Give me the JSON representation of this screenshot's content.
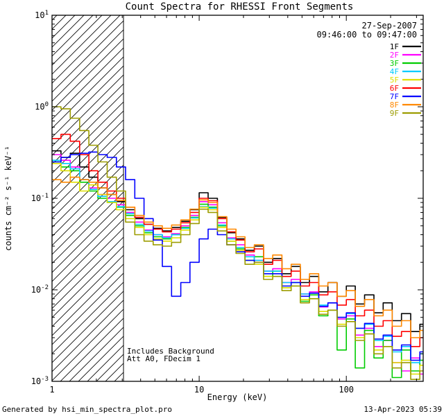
{
  "title": "Count Spectra for RHESSI Front Segments",
  "header": {
    "date": "27-Sep-2007",
    "time_range": "09:46:00 to 09:47:00"
  },
  "annotations": {
    "line1": "Includes Background",
    "line2": "Att A0, FDecim 1"
  },
  "footer": {
    "left": "Generated by hsi_min_spectra_plot.pro",
    "right": "13-Apr-2023 05:39"
  },
  "chart_data": {
    "type": "line",
    "title": "Count Spectra for RHESSI Front Segments",
    "xlabel": "Energy (keV)",
    "ylabel": "counts cm⁻² s⁻¹ keV⁻¹",
    "xscale": "log",
    "yscale": "log",
    "xlim": [
      1,
      333
    ],
    "ylim": [
      0.001,
      10
    ],
    "x_tick_values": [
      1,
      10,
      100
    ],
    "x_tick_labels": [
      "1",
      "10",
      "100"
    ],
    "y_tick_exponents": [
      1,
      0,
      -1,
      -2,
      -3
    ],
    "grid": false,
    "legend_position": "top-right",
    "step_mode": true,
    "hatched_region": {
      "xmin": 1,
      "xmax": 3.06
    },
    "energies_keV": [
      1.0,
      1.15,
      1.33,
      1.54,
      1.78,
      2.05,
      2.37,
      2.74,
      3.16,
      3.65,
      4.22,
      4.87,
      5.62,
      6.49,
      7.5,
      8.66,
      10.0,
      11.5,
      13.3,
      15.4,
      17.8,
      20.5,
      23.7,
      27.4,
      31.6,
      36.5,
      42.2,
      48.7,
      56.2,
      64.9,
      75.0,
      86.6,
      100,
      115,
      133,
      154,
      178,
      205,
      237,
      274,
      316
    ],
    "series": [
      {
        "name": "1F",
        "color": "#000000",
        "values": [
          0.33,
          0.28,
          0.31,
          0.22,
          0.17,
          0.13,
          0.11,
          0.092,
          0.075,
          0.06,
          0.052,
          0.047,
          0.044,
          0.048,
          0.056,
          0.075,
          0.115,
          0.1,
          0.062,
          0.042,
          0.036,
          0.027,
          0.03,
          0.02,
          0.022,
          0.015,
          0.018,
          0.012,
          0.014,
          0.0095,
          0.012,
          0.0085,
          0.011,
          0.007,
          0.0088,
          0.0056,
          0.0072,
          0.0046,
          0.0055,
          0.0035,
          0.0042
        ]
      },
      {
        "name": "2F",
        "color": "#FF00FF",
        "values": [
          0.3,
          0.26,
          0.22,
          0.16,
          0.13,
          0.11,
          0.1,
          0.085,
          0.07,
          0.055,
          0.045,
          0.04,
          0.038,
          0.041,
          0.05,
          0.065,
          0.092,
          0.085,
          0.054,
          0.037,
          0.031,
          0.024,
          0.021,
          0.016,
          0.017,
          0.012,
          0.013,
          0.009,
          0.0095,
          0.0065,
          0.0072,
          0.0048,
          0.0052,
          0.0032,
          0.0038,
          0.0024,
          0.0028,
          0.0016,
          0.0013,
          0.0018,
          0.0012
        ]
      },
      {
        "name": "3F",
        "color": "#00CC00",
        "values": [
          0.25,
          0.22,
          0.2,
          0.15,
          0.12,
          0.1,
          0.09,
          0.08,
          0.065,
          0.05,
          0.042,
          0.038,
          0.036,
          0.04,
          0.048,
          0.062,
          0.086,
          0.08,
          0.05,
          0.034,
          0.028,
          0.021,
          0.023,
          0.014,
          0.016,
          0.0105,
          0.012,
          0.0075,
          0.0088,
          0.0052,
          0.006,
          0.0022,
          0.0048,
          0.0014,
          0.0036,
          0.0018,
          0.0028,
          0.0011,
          0.0022,
          0.0013,
          0.0017
        ]
      },
      {
        "name": "4F",
        "color": "#00CCFF",
        "values": [
          0.26,
          0.24,
          0.21,
          0.16,
          0.125,
          0.105,
          0.092,
          0.081,
          0.068,
          0.052,
          0.044,
          0.04,
          0.037,
          0.04,
          0.047,
          0.061,
          0.081,
          0.078,
          0.051,
          0.036,
          0.029,
          0.023,
          0.021,
          0.016,
          0.016,
          0.012,
          0.012,
          0.009,
          0.0092,
          0.0068,
          0.0072,
          0.005,
          0.0055,
          0.0038,
          0.0042,
          0.0028,
          0.0031,
          0.0021,
          0.0024,
          0.0016,
          0.002
        ]
      },
      {
        "name": "5F",
        "color": "#DFDF00",
        "values": [
          0.24,
          0.2,
          0.15,
          0.12,
          0.14,
          0.11,
          0.09,
          0.075,
          0.06,
          0.048,
          0.04,
          0.036,
          0.034,
          0.037,
          0.045,
          0.058,
          0.08,
          0.075,
          0.048,
          0.034,
          0.027,
          0.021,
          0.019,
          0.014,
          0.014,
          0.0105,
          0.011,
          0.0078,
          0.008,
          0.0058,
          0.006,
          0.0042,
          0.0045,
          0.003,
          0.0033,
          0.0022,
          0.0024,
          0.0016,
          0.0017,
          0.0012,
          0.0015
        ]
      },
      {
        "name": "6F",
        "color": "#FF0000",
        "values": [
          0.45,
          0.5,
          0.42,
          0.3,
          0.2,
          0.15,
          0.12,
          0.1,
          0.08,
          0.062,
          0.052,
          0.046,
          0.043,
          0.046,
          0.054,
          0.07,
          0.1,
          0.094,
          0.06,
          0.043,
          0.035,
          0.026,
          0.028,
          0.019,
          0.021,
          0.014,
          0.016,
          0.011,
          0.012,
          0.0088,
          0.0095,
          0.0068,
          0.0078,
          0.0052,
          0.006,
          0.004,
          0.0046,
          0.0031,
          0.0035,
          0.0024,
          0.003
        ]
      },
      {
        "name": "7F",
        "color": "#0000FF",
        "values": [
          0.25,
          0.28,
          0.3,
          0.31,
          0.32,
          0.3,
          0.28,
          0.22,
          0.16,
          0.1,
          0.06,
          0.035,
          0.018,
          0.0085,
          0.012,
          0.02,
          0.036,
          0.046,
          0.04,
          0.031,
          0.026,
          0.021,
          0.02,
          0.015,
          0.015,
          0.011,
          0.012,
          0.0085,
          0.0092,
          0.0066,
          0.0072,
          0.005,
          0.0056,
          0.0038,
          0.0043,
          0.0029,
          0.0032,
          0.0022,
          0.0025,
          0.0017,
          0.0021
        ]
      },
      {
        "name": "8F",
        "color": "#FF8800",
        "values": [
          0.16,
          0.15,
          0.17,
          0.16,
          0.15,
          0.13,
          0.11,
          0.095,
          0.08,
          0.065,
          0.055,
          0.05,
          0.047,
          0.051,
          0.058,
          0.076,
          0.096,
          0.09,
          0.063,
          0.046,
          0.038,
          0.029,
          0.031,
          0.022,
          0.024,
          0.017,
          0.019,
          0.013,
          0.015,
          0.011,
          0.012,
          0.0085,
          0.0098,
          0.0066,
          0.0078,
          0.0052,
          0.006,
          0.004,
          0.0046,
          0.003,
          0.0036
        ]
      },
      {
        "name": "9F",
        "color": "#9C9C00",
        "values": [
          1.0,
          0.95,
          0.75,
          0.55,
          0.38,
          0.25,
          0.17,
          0.12,
          0.055,
          0.04,
          0.034,
          0.031,
          0.03,
          0.033,
          0.04,
          0.053,
          0.076,
          0.07,
          0.044,
          0.031,
          0.025,
          0.019,
          0.02,
          0.013,
          0.014,
          0.0098,
          0.011,
          0.0072,
          0.008,
          0.0054,
          0.006,
          0.004,
          0.0045,
          0.0028,
          0.0033,
          0.002,
          0.0024,
          0.0014,
          0.0016,
          0.00105,
          0.0013
        ]
      }
    ]
  }
}
